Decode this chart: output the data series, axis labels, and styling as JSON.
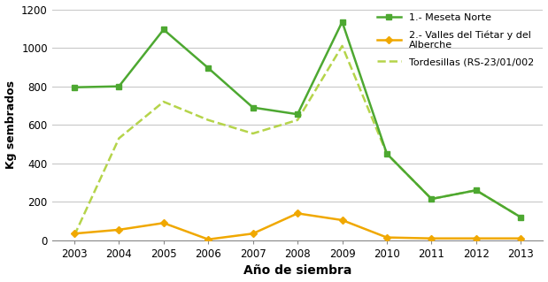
{
  "years": [
    2003,
    2004,
    2005,
    2006,
    2007,
    2008,
    2009,
    2010,
    2011,
    2012,
    2013
  ],
  "meseta_norte": [
    795,
    800,
    1095,
    895,
    690,
    655,
    1135,
    450,
    215,
    260,
    120
  ],
  "valles_tietar": [
    35,
    55,
    90,
    5,
    35,
    140,
    105,
    15,
    10,
    10,
    10
  ],
  "tordesillas": [
    25,
    530,
    720,
    625,
    555,
    625,
    1010,
    450,
    215,
    260,
    120
  ],
  "color_meseta": "#4da831",
  "color_valles": "#f0a800",
  "color_tordesillas": "#b5d44a",
  "ylabel": "Kg sembrados",
  "xlabel": "Año de siembra",
  "ylim": [
    0,
    1200
  ],
  "yticks": [
    0,
    200,
    400,
    600,
    800,
    1000,
    1200
  ],
  "legend_meseta": "1.- Meseta Norte",
  "legend_valles": "2.- Valles del Tiétar y del\nAlberche",
  "legend_tordesillas": "Tordesillas (RS-23/01/002"
}
